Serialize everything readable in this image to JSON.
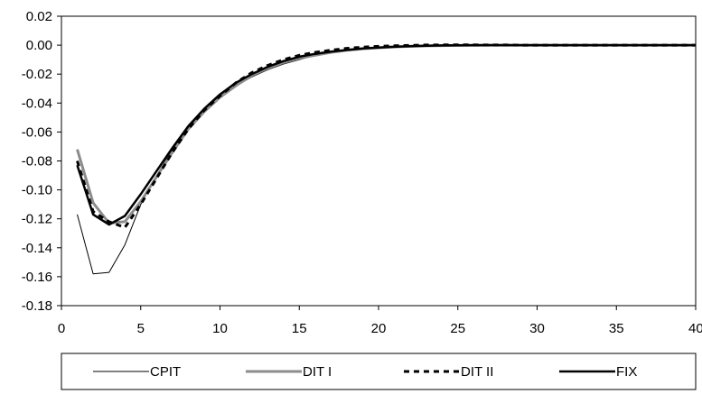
{
  "chart_data": {
    "type": "line",
    "title": "",
    "xlabel": "",
    "ylabel": "",
    "xlim": [
      0,
      40
    ],
    "ylim": [
      -0.18,
      0.02
    ],
    "x_ticks": [
      0,
      5,
      10,
      15,
      20,
      25,
      30,
      35,
      40
    ],
    "x_tick_labels": [
      "0",
      "5",
      "10",
      "15",
      "20",
      "25",
      "30",
      "35",
      "40"
    ],
    "y_ticks": [
      0.02,
      0.0,
      -0.02,
      -0.04,
      -0.06,
      -0.08,
      -0.1,
      -0.12,
      -0.14,
      -0.16,
      -0.18
    ],
    "y_tick_labels": [
      "0.02",
      "0.00",
      "-0.02",
      "-0.04",
      "-0.06",
      "-0.08",
      "-0.10",
      "-0.12",
      "-0.14",
      "-0.16",
      "-0.18"
    ],
    "grid": false,
    "legend_position": "bottom",
    "x": [
      1,
      2,
      3,
      4,
      5,
      6,
      7,
      8,
      9,
      10,
      11,
      12,
      13,
      14,
      15,
      16,
      17,
      18,
      19,
      20,
      21,
      22,
      23,
      24,
      25,
      26,
      27,
      28,
      29,
      30,
      31,
      32,
      33,
      34,
      35,
      36,
      37,
      38,
      39,
      40
    ],
    "series": [
      {
        "name": "CPIT",
        "style": "thin-solid",
        "color": "#000000",
        "values": [
          -0.117,
          -0.158,
          -0.157,
          -0.138,
          -0.11,
          -0.09,
          -0.072,
          -0.058,
          -0.046,
          -0.036,
          -0.028,
          -0.022,
          -0.017,
          -0.013,
          -0.01,
          -0.007,
          -0.005,
          -0.004,
          -0.003,
          -0.002,
          -0.0015,
          -0.001,
          -0.0008,
          -0.0006,
          -0.0004,
          -0.0003,
          -0.0002,
          -0.0001,
          0,
          0,
          0,
          0,
          0,
          0,
          0,
          0,
          0,
          0,
          0,
          0
        ]
      },
      {
        "name": "DIT I",
        "style": "thick-gray",
        "color": "#8c8c8c",
        "values": [
          -0.072,
          -0.109,
          -0.123,
          -0.122,
          -0.108,
          -0.091,
          -0.074,
          -0.058,
          -0.046,
          -0.036,
          -0.028,
          -0.021,
          -0.016,
          -0.012,
          -0.009,
          -0.007,
          -0.005,
          -0.0035,
          -0.0025,
          -0.0018,
          -0.0012,
          -0.0008,
          -0.0005,
          -0.0003,
          -0.0002,
          -0.0001,
          0,
          0,
          0,
          0,
          0,
          0,
          0,
          0,
          0,
          0,
          0,
          0,
          0,
          0
        ]
      },
      {
        "name": "DIT II",
        "style": "dashed",
        "color": "#000000",
        "values": [
          -0.08,
          -0.115,
          -0.122,
          -0.126,
          -0.11,
          -0.092,
          -0.074,
          -0.058,
          -0.045,
          -0.035,
          -0.026,
          -0.019,
          -0.014,
          -0.01,
          -0.007,
          -0.005,
          -0.0035,
          -0.0022,
          -0.0014,
          -0.0008,
          -0.0004,
          -0.0001,
          0.0001,
          0.0002,
          0.0002,
          0.0002,
          0.0001,
          0.0001,
          0,
          0,
          0,
          0,
          0,
          0,
          0,
          0,
          0,
          0,
          0,
          0
        ]
      },
      {
        "name": "FIX",
        "style": "thick-solid",
        "color": "#000000",
        "values": [
          -0.083,
          -0.117,
          -0.124,
          -0.118,
          -0.103,
          -0.087,
          -0.071,
          -0.056,
          -0.044,
          -0.034,
          -0.026,
          -0.02,
          -0.015,
          -0.011,
          -0.008,
          -0.006,
          -0.0045,
          -0.0033,
          -0.0023,
          -0.0016,
          -0.0011,
          -0.0007,
          -0.0004,
          -0.0002,
          -0.0001,
          0,
          0,
          0,
          0,
          0,
          0,
          0,
          0,
          0,
          0,
          0,
          0,
          0,
          0,
          0
        ]
      }
    ]
  }
}
